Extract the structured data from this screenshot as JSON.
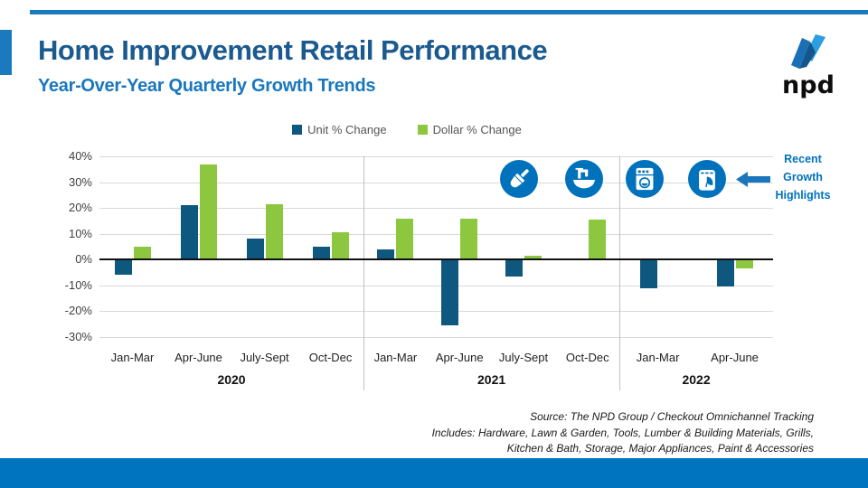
{
  "slide": {
    "title": "Home Improvement Retail Performance",
    "subtitle": "Year-Over-Year Quarterly Growth Trends",
    "logo_text": "npd"
  },
  "chart_data": {
    "type": "bar",
    "title": "Year-Over-Year Quarterly Growth Trends",
    "y_axis": {
      "min": -30,
      "max": 40,
      "step": 10,
      "unit": "%",
      "tick_labels": [
        "40%",
        "30%",
        "20%",
        "10%",
        "0%",
        "-10%",
        "-20%",
        "-30%"
      ],
      "grid": true
    },
    "groups": [
      {
        "year": "2020",
        "quarters": [
          "Jan-Mar",
          "Apr-June",
          "July-Sept",
          "Oct-Dec"
        ]
      },
      {
        "year": "2021",
        "quarters": [
          "Jan-Mar",
          "Apr-June",
          "July-Sept",
          "Oct-Dec"
        ]
      },
      {
        "year": "2022",
        "quarters": [
          "Jan-Mar",
          "Apr-June"
        ]
      }
    ],
    "series": [
      {
        "name": "Unit % Change",
        "color": "#0e587f",
        "values": [
          -6,
          21,
          8,
          5,
          4,
          -25.5,
          -6.5,
          0.5,
          -11,
          -10.5
        ]
      },
      {
        "name": "Dollar % Change",
        "color": "#8dc63f",
        "values": [
          5,
          37,
          21.5,
          10.5,
          16,
          16,
          1.5,
          15.5,
          0.5,
          -3.5
        ]
      }
    ],
    "legend_position": "top-center"
  },
  "highlights": {
    "label": "Recent Growth Highlights",
    "label_lines": [
      "Recent",
      "Growth",
      "Highlights"
    ],
    "icons": [
      "paint-brush",
      "sink",
      "washing-machine",
      "lawn-garden-bag"
    ],
    "accent_color": "#0072bc"
  },
  "source": {
    "lines": [
      "Source: The NPD Group / Checkout Omnichannel Tracking",
      "Includes: Hardware,  Lawn & Garden, Tools, Lumber & Building Materials, Grills,",
      "Kitchen & Bath, Storage, Major Appliances, Paint & Accessories"
    ]
  },
  "colors": {
    "title": "#1a5a8f",
    "subtitle": "#1877bd",
    "accent_bar": "#1b79be",
    "bottom_bar": "#0074be",
    "unit_bar": "#0e587f",
    "dollar_bar": "#8dc63f",
    "icon_circle": "#0072bc",
    "gridline": "#d9d9d9"
  }
}
